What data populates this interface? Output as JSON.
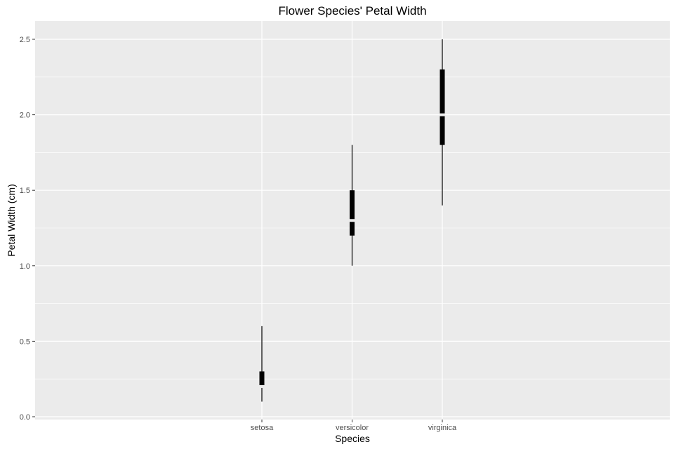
{
  "chart_data": {
    "type": "box",
    "title": "Flower Species' Petal Width",
    "xlabel": "Species",
    "ylabel": "Petal Width (cm)",
    "categories": [
      "setosa",
      "versicolor",
      "virginica"
    ],
    "boxes": [
      {
        "category": "setosa",
        "min": 0.1,
        "q1": 0.2,
        "median": 0.2,
        "q3": 0.3,
        "max": 0.6
      },
      {
        "category": "versicolor",
        "min": 1.0,
        "q1": 1.2,
        "median": 1.3,
        "q3": 1.5,
        "max": 1.8
      },
      {
        "category": "virginica",
        "min": 1.4,
        "q1": 1.8,
        "median": 2.0,
        "q3": 2.3,
        "max": 2.5
      }
    ],
    "ylim": [
      0.0,
      2.6
    ],
    "yticks": [
      "0.0",
      "0.5",
      "1.0",
      "1.5",
      "2.0",
      "2.5"
    ],
    "grid": true,
    "colors": {
      "panel_background": "#ebebeb",
      "grid": "#ffffff",
      "box": "#000000"
    }
  }
}
